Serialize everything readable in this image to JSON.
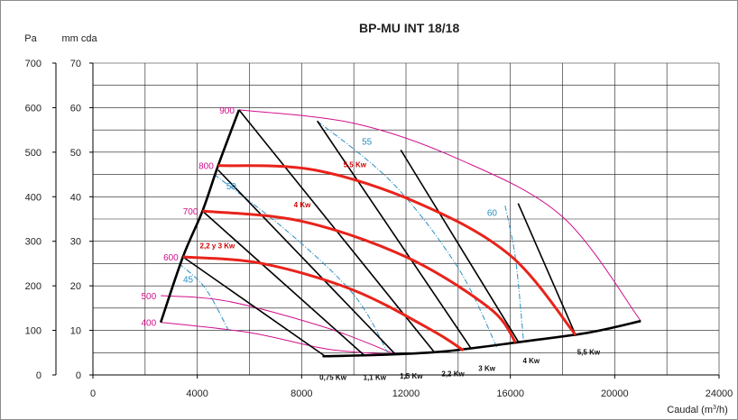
{
  "chart_data": {
    "type": "line",
    "title": "BP-MU INT 18/18",
    "ylabel_pa": "Pa",
    "ylabel_mmcda": "mm cda",
    "xlabel": "Caudal (m³/h)",
    "xlim": [
      0,
      24000
    ],
    "ylim_mmcda": [
      0,
      70
    ],
    "ylim_pa": [
      0,
      700
    ],
    "x_ticks": [
      "0",
      "4000",
      "8000",
      "12000",
      "16000",
      "20000",
      "24000"
    ],
    "y_ticks_mmcda": [
      "0",
      "10",
      "20",
      "30",
      "40",
      "50",
      "60",
      "70"
    ],
    "y_ticks_pa": [
      "0",
      "100",
      "200",
      "300",
      "400",
      "500",
      "600",
      "700"
    ],
    "grid": true,
    "colors": {
      "rpm": "#d0108c",
      "power": "#e8231b",
      "efficiency": "#2a8fc4",
      "system": "#000000"
    },
    "rpm_curves": [
      {
        "label": "400",
        "points": [
          [
            2600,
            11.8
          ],
          [
            6000,
            9.5
          ],
          [
            9000,
            5.8
          ],
          [
            11500,
            4.6
          ]
        ]
      },
      {
        "label": "500",
        "points": [
          [
            2600,
            17.8
          ],
          [
            5200,
            16.5
          ],
          [
            9000,
            10.5
          ],
          [
            11600,
            4.6
          ]
        ]
      },
      {
        "label": "600",
        "points": [
          [
            3450,
            26.5
          ],
          [
            6500,
            25
          ],
          [
            10000,
            19
          ],
          [
            13000,
            10
          ],
          [
            14200,
            5.5
          ]
        ]
      },
      {
        "label": "700",
        "points": [
          [
            4200,
            36.8
          ],
          [
            8000,
            34.5
          ],
          [
            12000,
            26.5
          ],
          [
            15200,
            15
          ],
          [
            16200,
            7.3
          ]
        ]
      },
      {
        "label": "800",
        "points": [
          [
            4800,
            47
          ],
          [
            8500,
            46
          ],
          [
            12500,
            38.5
          ],
          [
            16000,
            26.8
          ],
          [
            18500,
            9
          ]
        ]
      },
      {
        "label": "900",
        "points": [
          [
            5600,
            59.5
          ],
          [
            10000,
            56.5
          ],
          [
            14000,
            48.5
          ],
          [
            18000,
            35.5
          ],
          [
            21000,
            12.1
          ]
        ]
      }
    ],
    "power_curves": [
      {
        "label": "2,2 y 3 Kw",
        "points": [
          [
            3450,
            26.5
          ],
          [
            6500,
            25
          ],
          [
            10000,
            19
          ],
          [
            13000,
            10
          ],
          [
            14200,
            5.5
          ]
        ]
      },
      {
        "label": "4 Kw",
        "points": [
          [
            4200,
            36.8
          ],
          [
            8000,
            34.5
          ],
          [
            12000,
            26.5
          ],
          [
            15200,
            15
          ],
          [
            16200,
            7.3
          ]
        ]
      },
      {
        "label": "5,5 Kw",
        "points": [
          [
            4800,
            47
          ],
          [
            8500,
            46
          ],
          [
            12500,
            38.5
          ],
          [
            16000,
            26.8
          ],
          [
            18500,
            9
          ]
        ]
      }
    ],
    "motor_lines": [
      {
        "label": "0,75 Kw",
        "points": [
          [
            3450,
            26.5
          ],
          [
            8900,
            4.2
          ]
        ]
      },
      {
        "label": "1,1 Kw",
        "points": [
          [
            4200,
            36.8
          ],
          [
            10400,
            4.4
          ]
        ]
      },
      {
        "label": "1,5 Kw",
        "points": [
          [
            4800,
            46
          ],
          [
            11600,
            4.6
          ]
        ]
      },
      {
        "label": "2,2 Kw",
        "points": [
          [
            5600,
            59.5
          ],
          [
            13100,
            5
          ]
        ]
      },
      {
        "label": "3 Kw",
        "points": [
          [
            8600,
            57
          ],
          [
            14500,
            5.9
          ]
        ]
      },
      {
        "label": "4 Kw",
        "points": [
          [
            11800,
            50.5
          ],
          [
            16300,
            7.5
          ]
        ]
      },
      {
        "label": "5,5 Kw",
        "points": [
          [
            16300,
            38.5
          ],
          [
            18500,
            9
          ]
        ]
      }
    ],
    "system_curve": {
      "points": [
        [
          8800,
          4.2
        ],
        [
          11000,
          4.5
        ],
        [
          13500,
          5.3
        ],
        [
          16500,
          7.5
        ],
        [
          19000,
          9.5
        ],
        [
          21000,
          12.1
        ]
      ]
    },
    "left_boundary": {
      "points": [
        [
          2600,
          11.8
        ],
        [
          3450,
          26.5
        ],
        [
          4200,
          36.8
        ],
        [
          4800,
          47
        ],
        [
          5600,
          59.5
        ]
      ]
    },
    "efficiency_curves": [
      {
        "label": "45",
        "points": [
          [
            3300,
            25
          ],
          [
            4300,
            19.5
          ],
          [
            5200,
            10
          ]
        ]
      },
      {
        "label": "50",
        "points": [
          [
            4650,
            45
          ],
          [
            7500,
            32
          ],
          [
            10000,
            18
          ],
          [
            11300,
            5
          ]
        ]
      },
      {
        "label": "55",
        "points": [
          [
            8600,
            57
          ],
          [
            11500,
            43
          ],
          [
            14000,
            24
          ],
          [
            15500,
            6
          ]
        ]
      },
      {
        "label": "60",
        "points": [
          [
            15800,
            38
          ],
          [
            16200,
            26
          ],
          [
            16500,
            8
          ]
        ]
      }
    ]
  }
}
